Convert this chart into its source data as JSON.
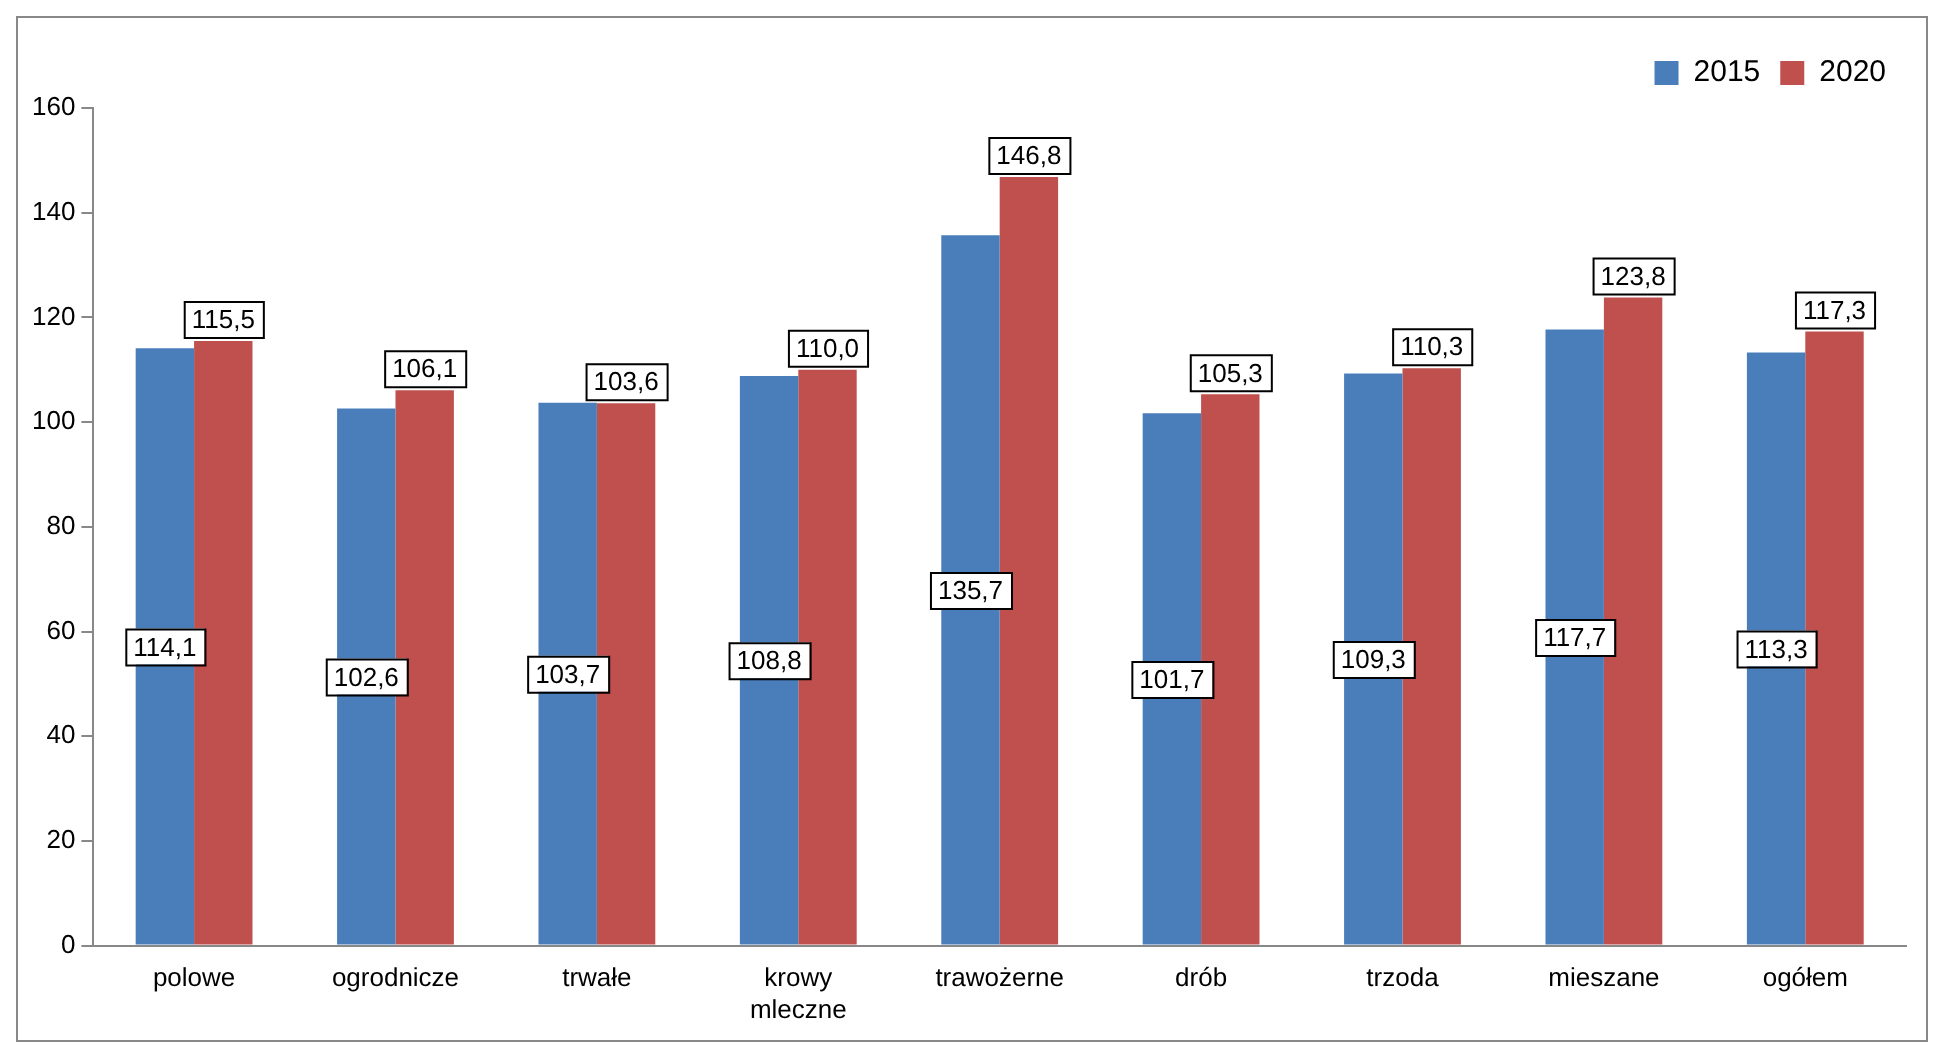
{
  "chart_data": {
    "type": "bar",
    "categories": [
      "polowe",
      "ogrodnicze",
      "trwałe",
      "krowy mleczne",
      "trawożerne",
      "drób",
      "trzoda",
      "mieszane",
      "ogółem"
    ],
    "series": [
      {
        "name": "2015",
        "color": "#4a7ebb",
        "values": [
          114.1,
          102.6,
          103.7,
          108.8,
          135.7,
          101.7,
          109.3,
          117.7,
          113.3
        ],
        "value_labels": [
          "114,1",
          "102,6",
          "103,7",
          "108,8",
          "135,7",
          "101,7",
          "109,3",
          "117,7",
          "113,3"
        ]
      },
      {
        "name": "2020",
        "color": "#c0504d",
        "values": [
          115.5,
          106.1,
          103.6,
          110.0,
          146.8,
          105.3,
          110.3,
          123.8,
          117.3
        ],
        "value_labels": [
          "115,5",
          "106,1",
          "103,6",
          "110,0",
          "146,8",
          "105,3",
          "110,3",
          "123,8",
          "117,3"
        ]
      }
    ],
    "ylim": [
      0,
      160
    ],
    "yticks": [
      0,
      20,
      40,
      60,
      80,
      100,
      120,
      140,
      160
    ],
    "grid": false,
    "legend": "top right"
  }
}
